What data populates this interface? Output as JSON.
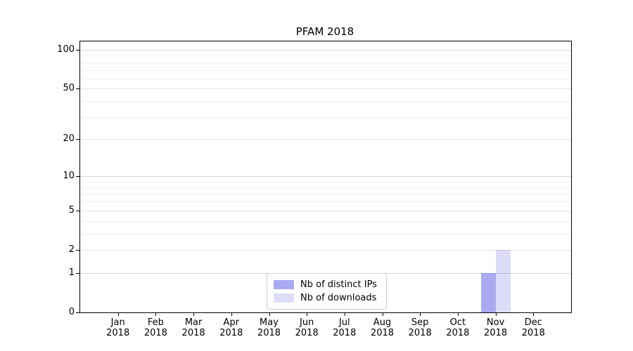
{
  "title": "PFAM 2018",
  "colors": {
    "distinct_ips_bar": "rgba(85,85,230,0.5)",
    "downloads_bar": "rgba(85,85,230,0.2)",
    "axis": "#000000",
    "grid_major": "#d4d4d4",
    "grid_minor": "#efefef",
    "legend_border": "#cccccc"
  },
  "chart_data": {
    "type": "bar",
    "title": "PFAM 2018",
    "yscale": "log1p",
    "grid": true,
    "legend_position": "lower center",
    "year": "2018",
    "months": [
      "Jan",
      "Feb",
      "Mar",
      "Apr",
      "May",
      "Jun",
      "Jul",
      "Aug",
      "Sep",
      "Oct",
      "Nov",
      "Dec"
    ],
    "categories": [
      "Jan 2018",
      "Feb 2018",
      "Mar 2018",
      "Apr 2018",
      "May 2018",
      "Jun 2018",
      "Jul 2018",
      "Aug 2018",
      "Sep 2018",
      "Oct 2018",
      "Nov 2018",
      "Dec 2018"
    ],
    "y_ticks": [
      0,
      1,
      2,
      5,
      10,
      20,
      50,
      100
    ],
    "decade_gridlines": [
      1,
      10,
      100
    ],
    "minor_gridlines": [
      3,
      4,
      6,
      7,
      8,
      9,
      30,
      40,
      60,
      70,
      80,
      90
    ],
    "ylim": [
      0,
      116
    ],
    "xlabel": "",
    "ylabel": "",
    "series": [
      {
        "name": "Nb of distinct IPs",
        "color": "rgba(85,85,230,0.5)",
        "values": [
          0,
          0,
          0,
          0,
          0,
          0,
          0,
          0,
          0,
          0,
          1,
          0
        ]
      },
      {
        "name": "Nb of downloads",
        "color": "rgba(85,85,230,0.2)",
        "values": [
          0,
          0,
          0,
          0,
          0,
          0,
          0,
          0,
          0,
          0,
          2,
          0
        ]
      }
    ]
  }
}
